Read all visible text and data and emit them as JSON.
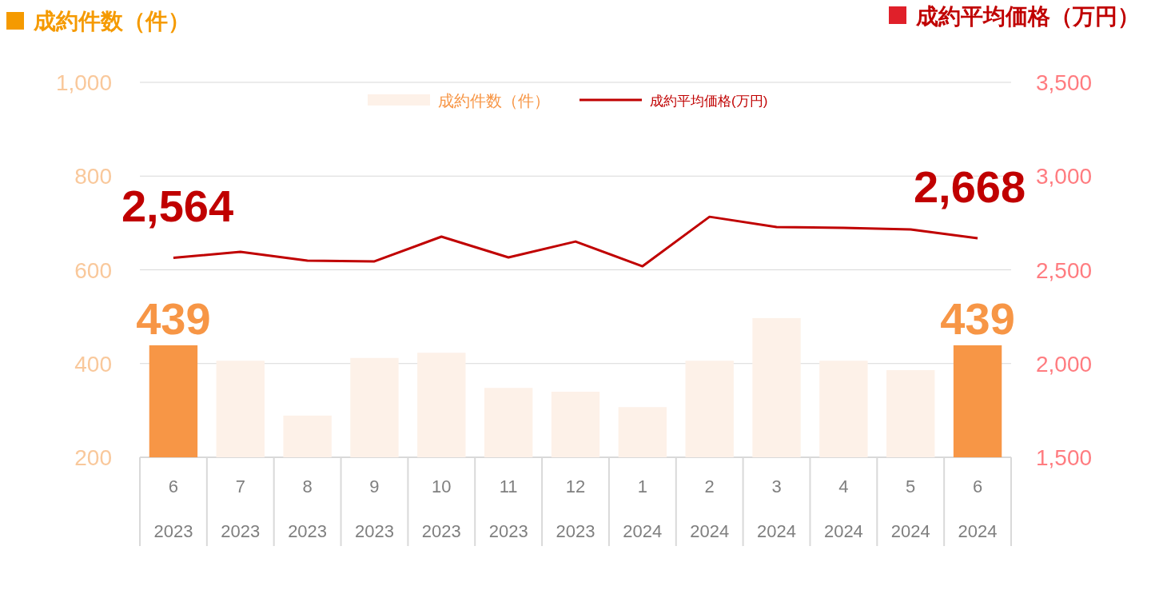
{
  "chart_data": {
    "type": "bar",
    "ylabel": "成約件数（件）",
    "y2label": "成約平均価格（万円）",
    "categories": [
      "6\n2023",
      "7\n2023",
      "8\n2023",
      "9\n2023",
      "10\n2023",
      "11\n2023",
      "12\n2023",
      "1\n2024",
      "2\n2024",
      "3\n2024",
      "4\n2024",
      "5\n2024",
      "6\n2024"
    ],
    "ylim": [
      200,
      1000
    ],
    "yticks": [
      {
        "value": 200,
        "label": "200"
      },
      {
        "value": 400,
        "label": "400"
      },
      {
        "value": 600,
        "label": "600"
      },
      {
        "value": 800,
        "label": "800"
      },
      {
        "value": 1000,
        "label": "1,000"
      }
    ],
    "y2lim": [
      1500,
      3500
    ],
    "y2ticks": [
      {
        "value": 1500,
        "label": "1,500"
      },
      {
        "value": 2000,
        "label": "2,000"
      },
      {
        "value": 2500,
        "label": "2,500"
      },
      {
        "value": 3000,
        "label": "3,000"
      },
      {
        "value": 3500,
        "label": "3,500"
      }
    ],
    "grid": "y",
    "legend": "top",
    "series": [
      {
        "name": "成約件数（件）",
        "color": "#fdf1e8",
        "colors": [
          "#f79646",
          "#fdf1e8",
          "#fdf1e8",
          "#fdf1e8",
          "#fdf1e8",
          "#fdf1e8",
          "#fdf1e8",
          "#fdf1e8",
          "#fdf1e8",
          "#fdf1e8",
          "#fdf1e8",
          "#fdf1e8",
          "#f79646"
        ],
        "values": [
          439,
          406,
          289,
          412,
          423,
          348,
          340,
          307,
          406,
          497,
          406,
          386,
          439
        ],
        "value_labels": [
          "439",
          null,
          null,
          null,
          null,
          null,
          null,
          null,
          null,
          null,
          null,
          null,
          "439"
        ]
      },
      {
        "name": "成約平均価格(万円)",
        "type": "line",
        "axis": "y2",
        "color": "#c00000",
        "values": [
          2564,
          2596,
          2549,
          2545,
          2677,
          2566,
          2651,
          2519,
          2783,
          2728,
          2724,
          2715,
          2668
        ],
        "value_labels": [
          "2,564",
          null,
          null,
          null,
          null,
          null,
          null,
          null,
          null,
          null,
          null,
          null,
          "2,668"
        ]
      }
    ]
  }
}
